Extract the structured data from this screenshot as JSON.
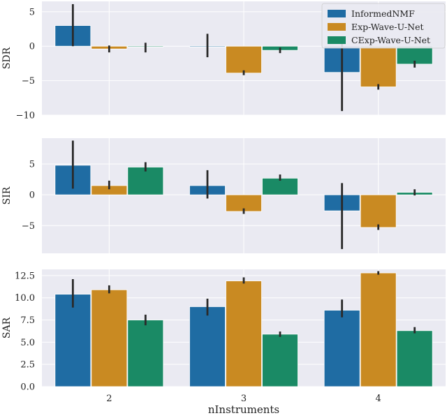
{
  "figure": {
    "xlabel": "nInstruments",
    "legend_position": "top-right"
  },
  "colors": {
    "panel_bg": "#eaeaf2",
    "grid": "#ffffff",
    "errbar": "#2a2a2a"
  },
  "chart_data": [
    {
      "type": "bar",
      "ylabel": "SDR",
      "categories": [
        "2",
        "3",
        "4"
      ],
      "ylim": [
        -10,
        6.5
      ],
      "yticks": [
        -10,
        -5,
        0,
        5
      ],
      "ytick_labels": [
        "−10",
        "−5",
        "0",
        "5"
      ],
      "show_xticks": false,
      "legend": true,
      "series": [
        {
          "name": "InformedNMF",
          "color": "#1f6ca3",
          "values": [
            3.0,
            0.0,
            -3.8
          ],
          "err_low": [
            0.0,
            -1.6,
            -9.4
          ],
          "err_high": [
            6.1,
            1.8,
            1.0
          ]
        },
        {
          "name": "Exp-Wave-U-Net",
          "color": "#c98a22",
          "values": [
            -0.4,
            -3.9,
            -5.9
          ],
          "err_low": [
            -0.9,
            -4.2,
            -6.3
          ],
          "err_high": [
            0.1,
            -3.5,
            -5.5
          ]
        },
        {
          "name": "CExp-Wave-U-Net",
          "color": "#1a8a65",
          "values": [
            -0.1,
            -0.6,
            -2.6
          ],
          "err_low": [
            -0.9,
            -1.0,
            -3.1
          ],
          "err_high": [
            0.5,
            -0.2,
            -2.1
          ]
        }
      ]
    },
    {
      "type": "bar",
      "ylabel": "SIR",
      "categories": [
        "2",
        "3",
        "4"
      ],
      "ylim": [
        -9.5,
        9.2
      ],
      "yticks": [
        -5,
        0,
        5
      ],
      "ytick_labels": [
        "−5",
        "0",
        "5"
      ],
      "show_xticks": false,
      "legend": false,
      "series": [
        {
          "name": "InformedNMF",
          "color": "#1f6ca3",
          "values": [
            4.8,
            1.5,
            -2.6
          ],
          "err_low": [
            1.0,
            -0.6,
            -8.8
          ],
          "err_high": [
            8.8,
            4.0,
            1.9
          ]
        },
        {
          "name": "Exp-Wave-U-Net",
          "color": "#c98a22",
          "values": [
            1.5,
            -2.7,
            -5.3
          ],
          "err_low": [
            0.9,
            -3.1,
            -5.7
          ],
          "err_high": [
            2.3,
            -2.2,
            -4.8
          ]
        },
        {
          "name": "CExp-Wave-U-Net",
          "color": "#1a8a65",
          "values": [
            4.5,
            2.7,
            0.4
          ],
          "err_low": [
            3.8,
            2.3,
            -0.1
          ],
          "err_high": [
            5.3,
            3.3,
            0.9
          ]
        }
      ]
    },
    {
      "type": "bar",
      "ylabel": "SAR",
      "categories": [
        "2",
        "3",
        "4"
      ],
      "ylim": [
        0,
        13.2
      ],
      "yticks": [
        0,
        2.5,
        5,
        7.5,
        10,
        12.5
      ],
      "ytick_labels": [
        "0.0",
        "2.5",
        "5.0",
        "7.5",
        "10.0",
        "12.5"
      ],
      "show_xticks": true,
      "legend": false,
      "series": [
        {
          "name": "InformedNMF",
          "color": "#1f6ca3",
          "values": [
            10.4,
            9.0,
            8.6
          ],
          "err_low": [
            8.9,
            8.0,
            7.8
          ],
          "err_high": [
            12.1,
            9.9,
            9.8
          ]
        },
        {
          "name": "Exp-Wave-U-Net",
          "color": "#c98a22",
          "values": [
            10.9,
            11.9,
            12.8
          ],
          "err_low": [
            10.5,
            11.6,
            12.6
          ],
          "err_high": [
            11.4,
            12.3,
            13.0
          ]
        },
        {
          "name": "CExp-Wave-U-Net",
          "color": "#1a8a65",
          "values": [
            7.5,
            5.9,
            6.3
          ],
          "err_low": [
            6.9,
            5.6,
            6.0
          ],
          "err_high": [
            8.1,
            6.2,
            6.7
          ]
        }
      ]
    }
  ]
}
